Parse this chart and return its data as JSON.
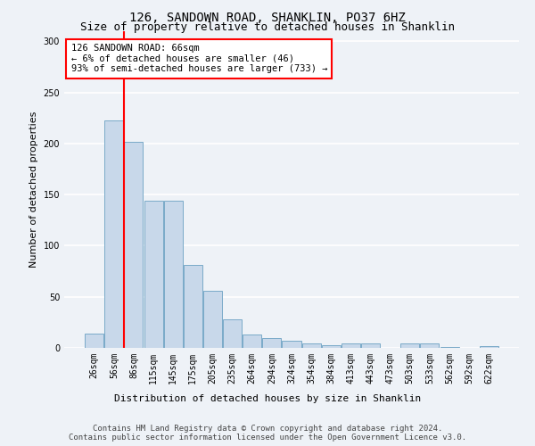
{
  "title": "126, SANDOWN ROAD, SHANKLIN, PO37 6HZ",
  "subtitle": "Size of property relative to detached houses in Shanklin",
  "xlabel": "Distribution of detached houses by size in Shanklin",
  "ylabel": "Number of detached properties",
  "bar_color": "#c8d8ea",
  "bar_edge_color": "#7aaac8",
  "categories": [
    "26sqm",
    "56sqm",
    "86sqm",
    "115sqm",
    "145sqm",
    "175sqm",
    "205sqm",
    "235sqm",
    "264sqm",
    "294sqm",
    "324sqm",
    "354sqm",
    "384sqm",
    "413sqm",
    "443sqm",
    "473sqm",
    "503sqm",
    "533sqm",
    "562sqm",
    "592sqm",
    "622sqm"
  ],
  "values": [
    14,
    223,
    202,
    144,
    144,
    81,
    56,
    28,
    13,
    10,
    7,
    4,
    3,
    4,
    4,
    0,
    4,
    4,
    1,
    0,
    2
  ],
  "ylim": [
    0,
    310
  ],
  "yticks": [
    0,
    50,
    100,
    150,
    200,
    250,
    300
  ],
  "vline_x": 1.5,
  "annotation_text": "126 SANDOWN ROAD: 66sqm\n← 6% of detached houses are smaller (46)\n93% of semi-detached houses are larger (733) →",
  "annotation_box_color": "white",
  "annotation_box_edge": "red",
  "footer_line1": "Contains HM Land Registry data © Crown copyright and database right 2024.",
  "footer_line2": "Contains public sector information licensed under the Open Government Licence v3.0.",
  "background_color": "#eef2f7",
  "grid_color": "#ffffff",
  "title_fontsize": 10,
  "subtitle_fontsize": 9,
  "ylabel_fontsize": 8,
  "xlabel_fontsize": 8,
  "tick_fontsize": 7,
  "annotation_fontsize": 7.5,
  "footer_fontsize": 6.5
}
